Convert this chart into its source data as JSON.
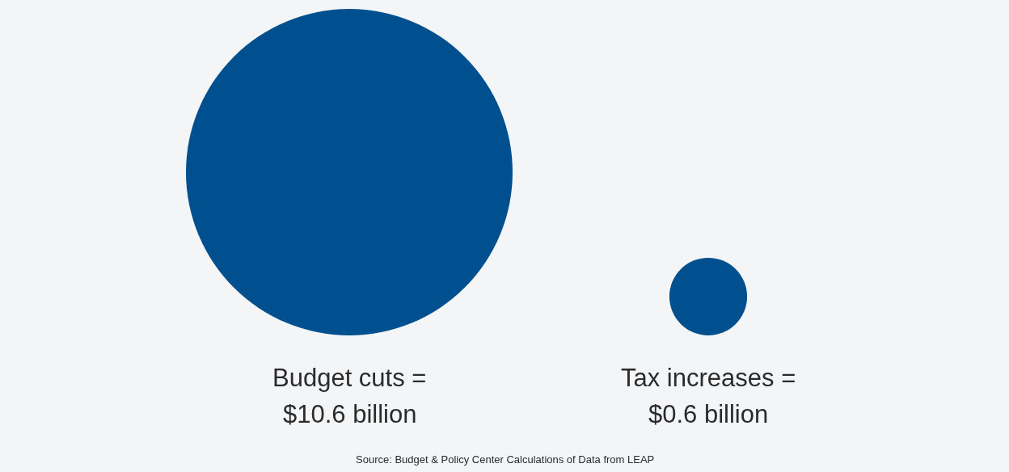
{
  "chart_data": {
    "type": "other",
    "categories": [
      "Budget cuts =",
      "Tax increases ="
    ],
    "values": [
      10.6,
      0.6
    ],
    "value_labels": [
      "$10.6 billion",
      "$0.6 billion"
    ],
    "color": "#00508f",
    "annotations": [
      "Source: Budget & Policy Center Calculations of Data from LEAP"
    ]
  }
}
